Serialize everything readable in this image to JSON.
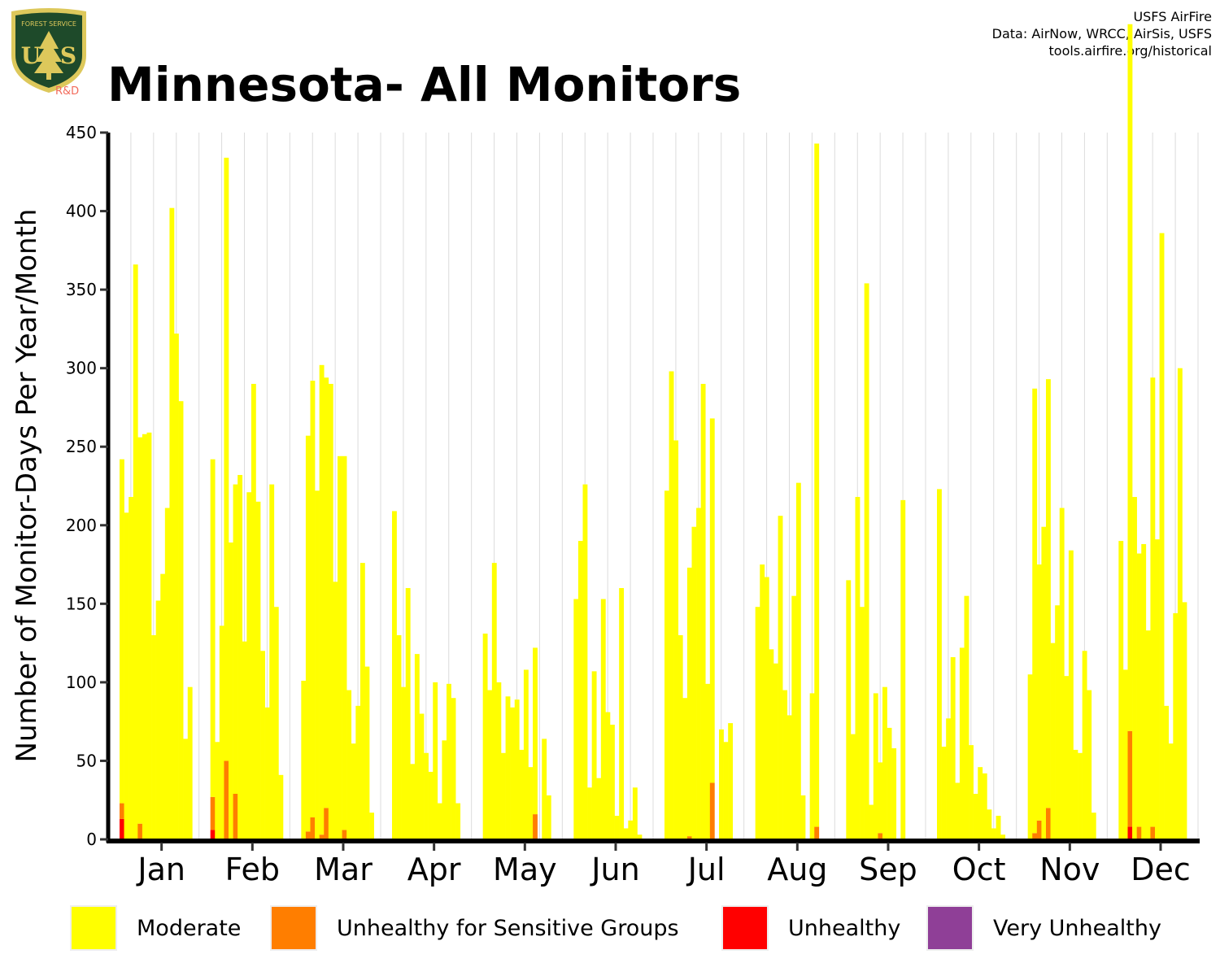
{
  "header": {
    "title": "Minnesota- All Monitors",
    "credits": [
      "USFS AirFire",
      "Data: AirNow, WRCC, AirSis, USFS",
      "tools.airfire.org/historical"
    ],
    "logo": {
      "top_text": "FOREST SERVICE",
      "letters": "US",
      "bottom_text": "DEPARTMENT OF AGRICULTURE",
      "badge": "R&D"
    }
  },
  "chart_data": {
    "type": "bar",
    "stacked": true,
    "ylabel": "Number of Monitor-Days Per Year/Month",
    "xlabel": "",
    "ylim": [
      0,
      450
    ],
    "yticks": [
      0,
      50,
      100,
      150,
      200,
      250,
      300,
      350,
      400,
      450
    ],
    "categories": [
      "Jan",
      "Feb",
      "Mar",
      "Apr",
      "May",
      "Jun",
      "Jul",
      "Aug",
      "Sep",
      "Oct",
      "Nov",
      "Dec"
    ],
    "grid": "vertical",
    "legend_position": "bottom",
    "legend": [
      {
        "name": "Moderate",
        "color": "#FFFF00"
      },
      {
        "name": "Unhealthy for Sensitive Groups",
        "color": "#FF7E00"
      },
      {
        "name": "Unhealthy",
        "color": "#FF0000"
      },
      {
        "name": "Very Unhealthy",
        "color": "#8F3F97"
      }
    ],
    "bars_per_month": 20,
    "series": [
      {
        "name": "Moderate",
        "values": [
          [
            219,
            208,
            218,
            366,
            246,
            258,
            259,
            130,
            152,
            169,
            211,
            402,
            322,
            279,
            64,
            97,
            0,
            0,
            0,
            0
          ],
          [
            215,
            62,
            136,
            384,
            189,
            197,
            232,
            126,
            221,
            290,
            215,
            120,
            84,
            226,
            148,
            41,
            0,
            0,
            0,
            0
          ],
          [
            101,
            252,
            278,
            222,
            299,
            274,
            290,
            164,
            244,
            238,
            95,
            61,
            85,
            176,
            110,
            17,
            0,
            0,
            0,
            0
          ],
          [
            209,
            130,
            97,
            160,
            48,
            118,
            80,
            55,
            43,
            100,
            23,
            63,
            99,
            90,
            23,
            0,
            0,
            0,
            0,
            0
          ],
          [
            131,
            95,
            176,
            100,
            55,
            91,
            84,
            89,
            57,
            108,
            46,
            106,
            0,
            64,
            28,
            0,
            0,
            0,
            0,
            0
          ],
          [
            153,
            190,
            226,
            33,
            107,
            39,
            153,
            81,
            73,
            15,
            160,
            7,
            12,
            33,
            3,
            0,
            0,
            0,
            0,
            0
          ],
          [
            222,
            298,
            254,
            130,
            90,
            171,
            199,
            211,
            290,
            99,
            232,
            0,
            70,
            62,
            74,
            0,
            0,
            0,
            0,
            0
          ],
          [
            148,
            175,
            167,
            121,
            112,
            206,
            95,
            79,
            155,
            227,
            28,
            0,
            93,
            435,
            0,
            0,
            0,
            0,
            0,
            0
          ],
          [
            165,
            67,
            218,
            148,
            354,
            22,
            93,
            45,
            97,
            71,
            58,
            0,
            216,
            0,
            0,
            0,
            0,
            0,
            0,
            0
          ],
          [
            223,
            59,
            77,
            116,
            36,
            122,
            155,
            60,
            29,
            46,
            42,
            19,
            7,
            15,
            3,
            0,
            0,
            0,
            0,
            0
          ],
          [
            105,
            283,
            163,
            199,
            273,
            125,
            149,
            211,
            104,
            184,
            57,
            55,
            120,
            95,
            17,
            0,
            0,
            0,
            0,
            0
          ],
          [
            190,
            108,
            450,
            218,
            174,
            188,
            133,
            286,
            191,
            386,
            85,
            61,
            144,
            300,
            151,
            0,
            0,
            0,
            0,
            0
          ]
        ]
      },
      {
        "name": "Unhealthy for Sensitive Groups",
        "values": [
          [
            10,
            0,
            0,
            0,
            10,
            0,
            0,
            0,
            0,
            0,
            0,
            0,
            0,
            0,
            0,
            0,
            0,
            0,
            0,
            0
          ],
          [
            21,
            0,
            0,
            50,
            0,
            29,
            0,
            0,
            0,
            0,
            0,
            0,
            0,
            0,
            0,
            0,
            0,
            0,
            0,
            0
          ],
          [
            0,
            5,
            14,
            0,
            3,
            20,
            0,
            0,
            0,
            6,
            0,
            0,
            0,
            0,
            0,
            0,
            0,
            0,
            0,
            0
          ],
          [
            0,
            0,
            0,
            0,
            0,
            0,
            0,
            0,
            0,
            0,
            0,
            0,
            0,
            0,
            0,
            0,
            0,
            0,
            0,
            0
          ],
          [
            0,
            0,
            0,
            0,
            0,
            0,
            0,
            0,
            0,
            0,
            0,
            16,
            0,
            0,
            0,
            0,
            0,
            0,
            0,
            0
          ],
          [
            0,
            0,
            0,
            0,
            0,
            0,
            0,
            0,
            0,
            0,
            0,
            0,
            0,
            0,
            0,
            0,
            0,
            0,
            0,
            0
          ],
          [
            0,
            0,
            0,
            0,
            0,
            2,
            0,
            0,
            0,
            0,
            36,
            0,
            0,
            0,
            0,
            0,
            0,
            0,
            0,
            0
          ],
          [
            0,
            0,
            0,
            0,
            0,
            0,
            0,
            0,
            0,
            0,
            0,
            0,
            0,
            8,
            0,
            0,
            0,
            0,
            0,
            0
          ],
          [
            0,
            0,
            0,
            0,
            0,
            0,
            0,
            4,
            0,
            0,
            0,
            0,
            0,
            0,
            0,
            0,
            0,
            0,
            0,
            0
          ],
          [
            0,
            0,
            0,
            0,
            0,
            0,
            0,
            0,
            0,
            0,
            0,
            0,
            0,
            0,
            0,
            0,
            0,
            0,
            0,
            0
          ],
          [
            0,
            4,
            12,
            0,
            20,
            0,
            0,
            0,
            0,
            0,
            0,
            0,
            0,
            0,
            0,
            0,
            0,
            0,
            0,
            0
          ],
          [
            0,
            0,
            61,
            0,
            8,
            0,
            0,
            8,
            0,
            0,
            0,
            0,
            0,
            0,
            0,
            0,
            0,
            0,
            0,
            0
          ]
        ]
      },
      {
        "name": "Unhealthy",
        "values": [
          [
            13,
            0,
            0,
            0,
            0,
            0,
            0,
            0,
            0,
            0,
            0,
            0,
            0,
            0,
            0,
            0,
            0,
            0,
            0,
            0
          ],
          [
            6,
            0,
            0,
            0,
            0,
            0,
            0,
            0,
            0,
            0,
            0,
            0,
            0,
            0,
            0,
            0,
            0,
            0,
            0,
            0
          ],
          [
            0,
            0,
            0,
            0,
            0,
            0,
            0,
            0,
            0,
            0,
            0,
            0,
            0,
            0,
            0,
            0,
            0,
            0,
            0,
            0
          ],
          [
            0,
            0,
            0,
            0,
            0,
            0,
            0,
            0,
            0,
            0,
            0,
            0,
            0,
            0,
            0,
            0,
            0,
            0,
            0,
            0
          ],
          [
            0,
            0,
            0,
            0,
            0,
            0,
            0,
            0,
            0,
            0,
            0,
            0,
            0,
            0,
            0,
            0,
            0,
            0,
            0,
            0
          ],
          [
            0,
            0,
            0,
            0,
            0,
            0,
            0,
            0,
            0,
            0,
            0,
            0,
            0,
            0,
            0,
            0,
            0,
            0,
            0,
            0
          ],
          [
            0,
            0,
            0,
            0,
            0,
            0,
            0,
            0,
            0,
            0,
            0,
            0,
            0,
            0,
            0,
            0,
            0,
            0,
            0,
            0
          ],
          [
            0,
            0,
            0,
            0,
            0,
            0,
            0,
            0,
            0,
            0,
            0,
            0,
            0,
            0,
            0,
            0,
            0,
            0,
            0,
            0
          ],
          [
            0,
            0,
            0,
            0,
            0,
            0,
            0,
            0,
            0,
            0,
            0,
            0,
            0,
            0,
            0,
            0,
            0,
            0,
            0,
            0
          ],
          [
            0,
            0,
            0,
            0,
            0,
            0,
            0,
            0,
            0,
            0,
            0,
            0,
            0,
            0,
            0,
            0,
            0,
            0,
            0,
            0
          ],
          [
            0,
            0,
            0,
            0,
            0,
            0,
            0,
            0,
            0,
            0,
            0,
            0,
            0,
            0,
            0,
            0,
            0,
            0,
            0,
            0
          ],
          [
            0,
            0,
            8,
            0,
            0,
            0,
            0,
            0,
            0,
            0,
            0,
            0,
            0,
            0,
            0,
            0,
            0,
            0,
            0,
            0
          ]
        ]
      },
      {
        "name": "Very Unhealthy",
        "values": [
          [
            0,
            0,
            0,
            0,
            0,
            0,
            0,
            0,
            0,
            0,
            0,
            0,
            0,
            0,
            0,
            0,
            0,
            0,
            0,
            0
          ],
          [
            0,
            0,
            0,
            0,
            0,
            0,
            0,
            0,
            0,
            0,
            0,
            0,
            0,
            0,
            0,
            0,
            0,
            0,
            0,
            0
          ],
          [
            0,
            0,
            0,
            0,
            0,
            0,
            0,
            0,
            0,
            0,
            0,
            0,
            0,
            0,
            0,
            0,
            0,
            0,
            0,
            0
          ],
          [
            0,
            0,
            0,
            0,
            0,
            0,
            0,
            0,
            0,
            0,
            0,
            0,
            0,
            0,
            0,
            0,
            0,
            0,
            0,
            0
          ],
          [
            0,
            0,
            0,
            0,
            0,
            0,
            0,
            0,
            0,
            0,
            0,
            0,
            0,
            0,
            0,
            0,
            0,
            0,
            0,
            0
          ],
          [
            0,
            0,
            0,
            0,
            0,
            0,
            0,
            0,
            0,
            0,
            0,
            0,
            0,
            0,
            0,
            0,
            0,
            0,
            0,
            0
          ],
          [
            0,
            0,
            0,
            0,
            0,
            0,
            0,
            0,
            0,
            0,
            0,
            0,
            0,
            0,
            0,
            0,
            0,
            0,
            0,
            0
          ],
          [
            0,
            0,
            0,
            0,
            0,
            0,
            0,
            0,
            0,
            0,
            0,
            0,
            0,
            0,
            0,
            0,
            0,
            0,
            0,
            0
          ],
          [
            0,
            0,
            0,
            0,
            0,
            0,
            0,
            0,
            0,
            0,
            0,
            0,
            0,
            0,
            0,
            0,
            0,
            0,
            0,
            0
          ],
          [
            0,
            0,
            0,
            0,
            0,
            0,
            0,
            0,
            0,
            0,
            0,
            0,
            0,
            0,
            0,
            0,
            0,
            0,
            0,
            0
          ],
          [
            0,
            0,
            0,
            0,
            0,
            0,
            0,
            0,
            0,
            0,
            0,
            0,
            0,
            0,
            0,
            0,
            0,
            0,
            0,
            0
          ],
          [
            0,
            0,
            0,
            0,
            0,
            0,
            0,
            0,
            0,
            0,
            0,
            0,
            0,
            0,
            0,
            0,
            0,
            0,
            0,
            0
          ]
        ]
      }
    ]
  }
}
